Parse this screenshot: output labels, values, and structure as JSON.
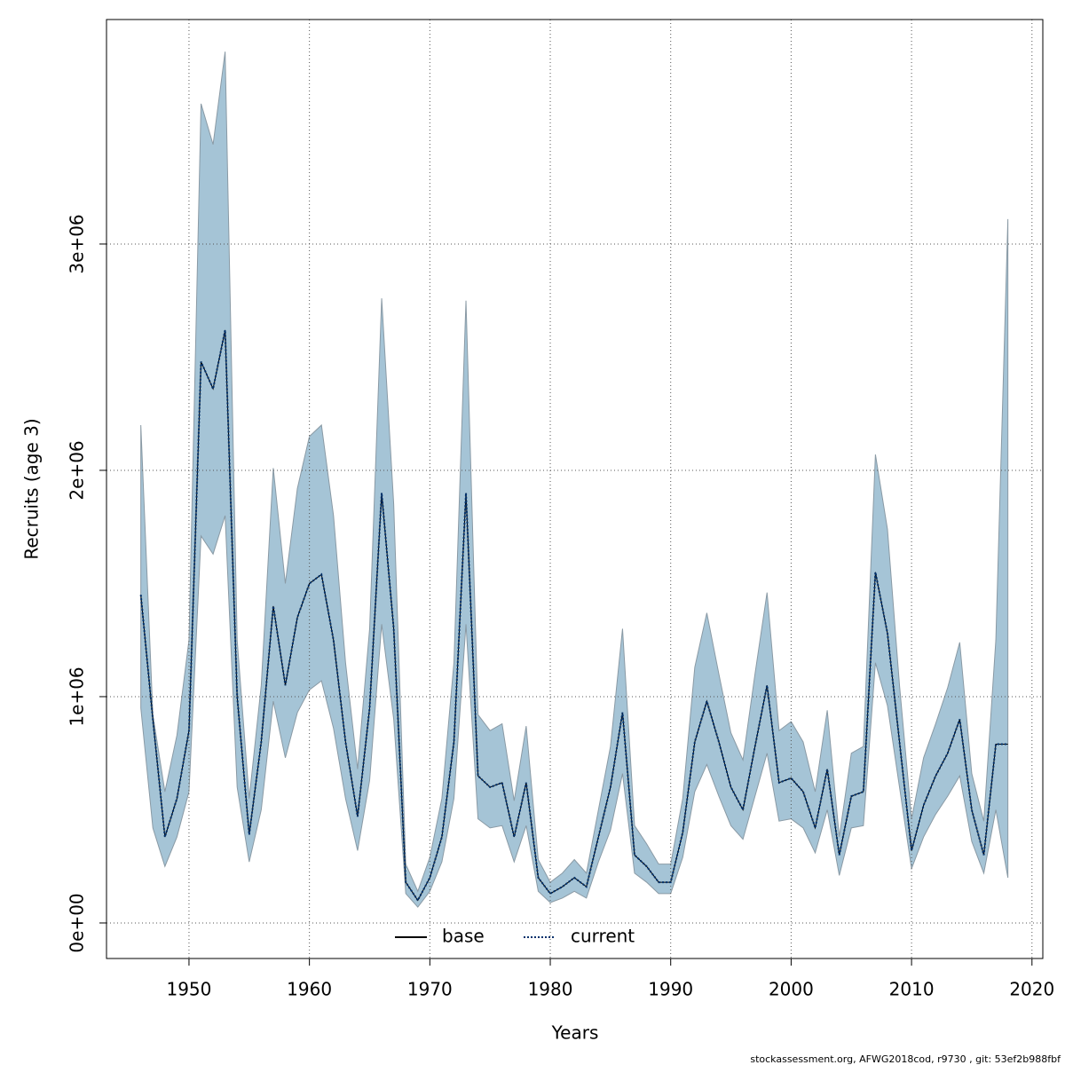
{
  "chart_data": {
    "type": "line",
    "xlabel": "Years",
    "ylabel": "Recruits (age 3)",
    "footer": "stockassessment.org, AFWG2018cod, r9730 , git: 53ef2b988fbf",
    "x": [
      1946,
      1947,
      1948,
      1949,
      1950,
      1951,
      1952,
      1953,
      1954,
      1955,
      1956,
      1957,
      1958,
      1959,
      1960,
      1961,
      1962,
      1963,
      1964,
      1965,
      1966,
      1967,
      1968,
      1969,
      1970,
      1971,
      1972,
      1973,
      1974,
      1975,
      1976,
      1977,
      1978,
      1979,
      1980,
      1981,
      1982,
      1983,
      1984,
      1985,
      1986,
      1987,
      1988,
      1989,
      1990,
      1991,
      1992,
      1993,
      1994,
      1995,
      1996,
      1997,
      1998,
      1999,
      2000,
      2001,
      2002,
      2003,
      2004,
      2005,
      2006,
      2007,
      2008,
      2009,
      2010,
      2011,
      2012,
      2013,
      2014,
      2015,
      2016,
      2017,
      2018
    ],
    "series": [
      {
        "name": "base",
        "color": "#000000",
        "dash": false,
        "values": [
          1450000.0,
          900000.0,
          380000.0,
          550000.0,
          850000.0,
          2480000.0,
          2360000.0,
          2620000.0,
          1000000.0,
          390000.0,
          800000.0,
          1400000.0,
          1050000.0,
          1350000.0,
          1500000.0,
          1540000.0,
          1250000.0,
          800000.0,
          470000.0,
          950000.0,
          1900000.0,
          1300000.0,
          180000.0,
          100000.0,
          200000.0,
          380000.0,
          800000.0,
          1900000.0,
          650000.0,
          600000.0,
          620000.0,
          380000.0,
          620000.0,
          200000.0,
          130000.0,
          160000.0,
          200000.0,
          160000.0,
          380000.0,
          600000.0,
          930000.0,
          300000.0,
          250000.0,
          180000.0,
          180000.0,
          400000.0,
          800000.0,
          980000.0,
          800000.0,
          600000.0,
          500000.0,
          780000.0,
          1050000.0,
          620000.0,
          640000.0,
          580000.0,
          420000.0,
          680000.0,
          300000.0,
          560000.0,
          580000.0,
          1550000.0,
          1280000.0,
          800000.0,
          320000.0,
          520000.0,
          650000.0,
          750000.0,
          900000.0,
          500000.0,
          300000.0,
          790000.0,
          790000.0
        ]
      },
      {
        "name": "current",
        "color": "#00306b",
        "dash": true,
        "values": [
          1450000.0,
          900000.0,
          380000.0,
          550000.0,
          850000.0,
          2480000.0,
          2360000.0,
          2620000.0,
          1000000.0,
          390000.0,
          800000.0,
          1400000.0,
          1050000.0,
          1350000.0,
          1500000.0,
          1540000.0,
          1250000.0,
          800000.0,
          470000.0,
          950000.0,
          1900000.0,
          1300000.0,
          180000.0,
          100000.0,
          200000.0,
          380000.0,
          800000.0,
          1900000.0,
          650000.0,
          600000.0,
          620000.0,
          380000.0,
          620000.0,
          200000.0,
          130000.0,
          160000.0,
          200000.0,
          160000.0,
          380000.0,
          600000.0,
          930000.0,
          300000.0,
          250000.0,
          180000.0,
          180000.0,
          400000.0,
          800000.0,
          980000.0,
          800000.0,
          600000.0,
          500000.0,
          780000.0,
          1050000.0,
          620000.0,
          640000.0,
          580000.0,
          420000.0,
          680000.0,
          300000.0,
          560000.0,
          580000.0,
          1550000.0,
          1280000.0,
          800000.0,
          320000.0,
          520000.0,
          650000.0,
          750000.0,
          900000.0,
          500000.0,
          300000.0,
          790000.0,
          790000.0
        ]
      }
    ],
    "band": {
      "color": "#a5c4d6",
      "upper": [
        2200000.0,
        920000.0,
        580000.0,
        830000.0,
        1250000.0,
        3620000.0,
        3440000.0,
        3850000.0,
        1250000.0,
        550000.0,
        1050000.0,
        2010000.0,
        1500000.0,
        1920000.0,
        2150000.0,
        2200000.0,
        1800000.0,
        1150000.0,
        680000.0,
        1300000.0,
        2760000.0,
        1850000.0,
        260000.0,
        140000.0,
        290000.0,
        550000.0,
        1150000.0,
        2750000.0,
        920000.0,
        850000.0,
        880000.0,
        540000.0,
        870000.0,
        280000.0,
        180000.0,
        220000.0,
        280000.0,
        220000.0,
        500000.0,
        780000.0,
        1300000.0,
        430000.0,
        350000.0,
        260000.0,
        260000.0,
        550000.0,
        1130000.0,
        1370000.0,
        1100000.0,
        840000.0,
        720000.0,
        1100000.0,
        1460000.0,
        850000.0,
        890000.0,
        800000.0,
        580000.0,
        940000.0,
        380000.0,
        750000.0,
        780000.0,
        2070000.0,
        1740000.0,
        1050000.0,
        460000.0,
        730000.0,
        880000.0,
        1040000.0,
        1240000.0,
        660000.0,
        450000.0,
        1250000.0,
        3110000.0
      ],
      "lower": [
        950000.0,
        420000.0,
        250000.0,
        380000.0,
        580000.0,
        1710000.0,
        1630000.0,
        1800000.0,
        600000.0,
        270000.0,
        500000.0,
        980000.0,
        730000.0,
        930000.0,
        1030000.0,
        1070000.0,
        860000.0,
        550000.0,
        320000.0,
        630000.0,
        1320000.0,
        900000.0,
        130000.0,
        70000.0,
        140000.0,
        270000.0,
        550000.0,
        1320000.0,
        460000.0,
        420000.0,
        430000.0,
        270000.0,
        430000.0,
        140000.0,
        90000.0,
        110000.0,
        140000.0,
        110000.0,
        270000.0,
        410000.0,
        660000.0,
        220000.0,
        180000.0,
        130000.0,
        130000.0,
        290000.0,
        580000.0,
        700000.0,
        560000.0,
        430000.0,
        370000.0,
        560000.0,
        750000.0,
        450000.0,
        460000.0,
        420000.0,
        310000.0,
        500000.0,
        210000.0,
        420000.0,
        430000.0,
        1150000.0,
        960000.0,
        600000.0,
        240000.0,
        380000.0,
        480000.0,
        560000.0,
        650000.0,
        360000.0,
        220000.0,
        500000.0,
        200000.0
      ]
    },
    "xlim": [
      1943.15,
      2020.9
    ],
    "ylim": [
      -157000,
      3992000
    ],
    "xticks": [
      1950,
      1960,
      1970,
      1980,
      1990,
      2000,
      2010,
      2020
    ],
    "yticks": [
      {
        "value": 0,
        "label": "0e+00"
      },
      {
        "value": 1000000,
        "label": "1e+06"
      },
      {
        "value": 2000000,
        "label": "2e+06"
      },
      {
        "value": 3000000,
        "label": "3e+06"
      }
    ],
    "grid": true,
    "legend": "bottom"
  }
}
